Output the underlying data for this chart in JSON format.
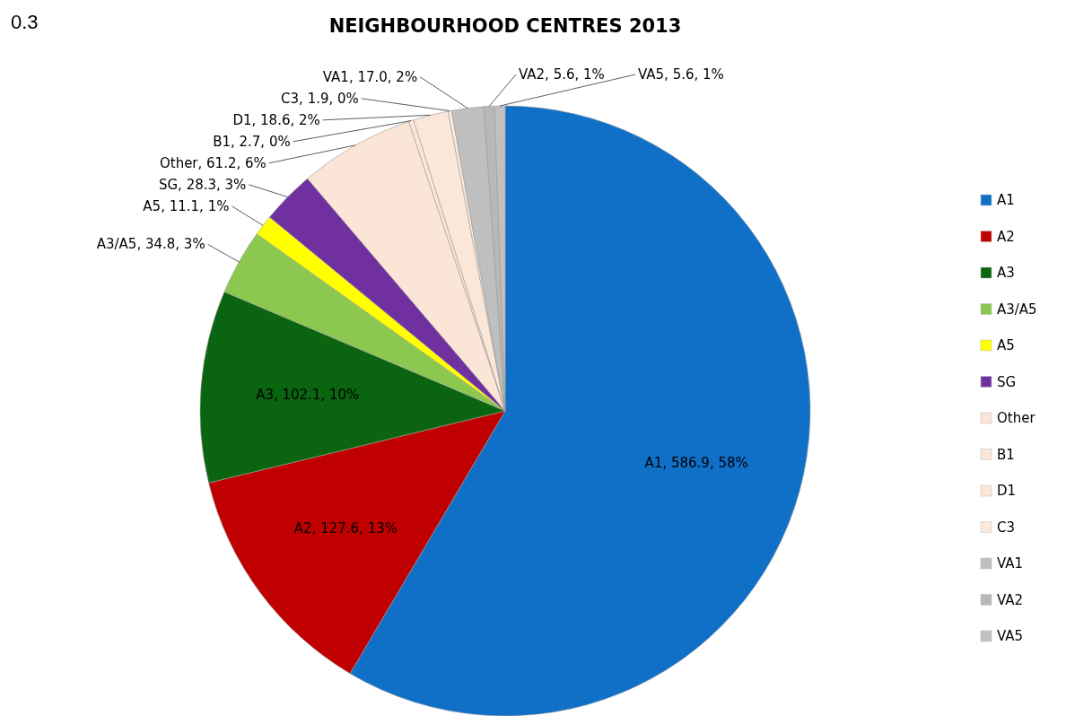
{
  "chart_data": {
    "type": "pie",
    "title": "NEIGHBOURHOOD CENTRES 2013",
    "annotations": [
      "0.3"
    ],
    "categories": [
      "A1",
      "A2",
      "A3",
      "A3/A5",
      "A5",
      "SG",
      "Other",
      "B1",
      "D1",
      "C3",
      "VA1",
      "VA2",
      "VA5"
    ],
    "values": [
      586.9,
      127.6,
      102.1,
      34.8,
      11.1,
      28.3,
      61.2,
      2.7,
      18.6,
      1.9,
      17.0,
      5.6,
      5.6
    ],
    "colors": [
      "#1070c8",
      "#c00000",
      "#0a6410",
      "#8cc850",
      "#ffff00",
      "#7030a0",
      "#fbe5d6",
      "#fbe5d6",
      "#fbe7d8",
      "#fceadb",
      "#bfbfbf",
      "#b8b8b8",
      "#c0c0c0"
    ],
    "value_labels": [
      "A1, 586.9, 58%",
      "A2, 127.6, 13%",
      "A3, 102.1, 10%",
      "A3/A5, 34.8, 3%",
      "A5, 11.1, 1%",
      "SG, 28.3, 3%",
      "Other, 61.2, 6%",
      "B1, 2.7, 0%",
      "D1, 18.6, 2%",
      "C3, 1.9, 0%",
      "VA1, 17.0, 2%",
      "VA2, 5.6, 1%",
      "VA5, 5.6, 1%"
    ],
    "legend": "right"
  }
}
